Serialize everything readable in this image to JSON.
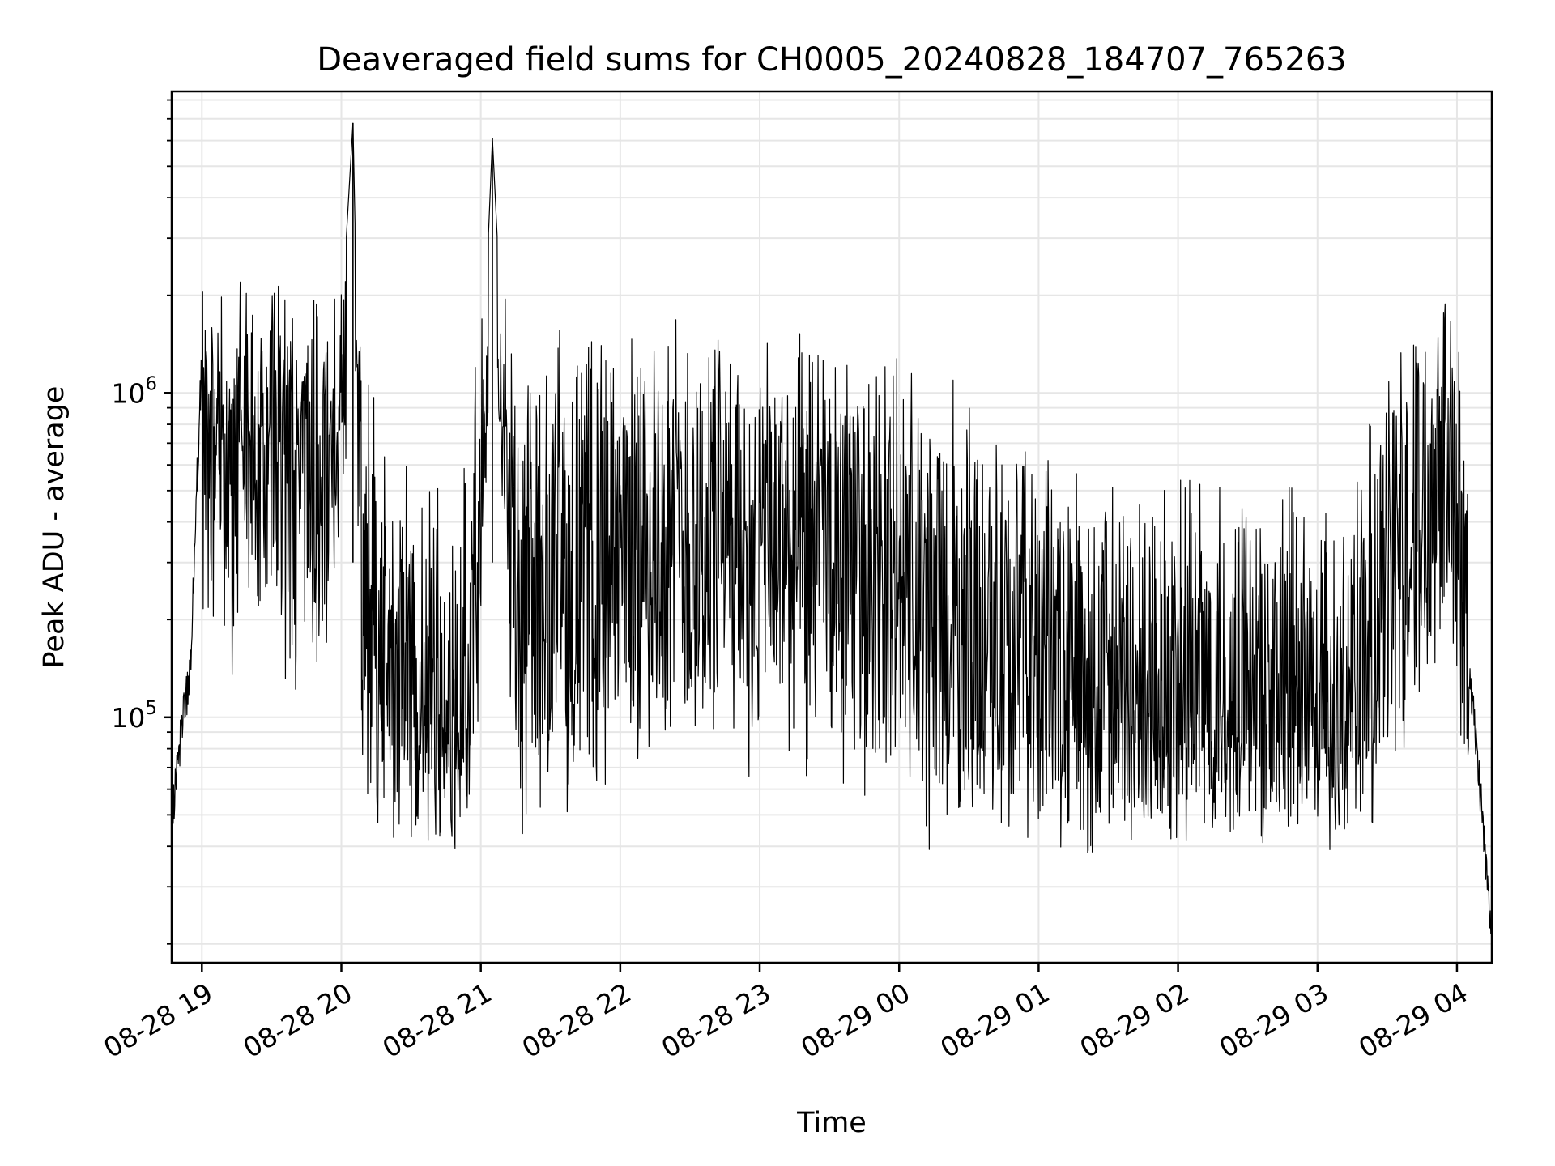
{
  "chart_data": {
    "type": "line",
    "title": "Deaveraged field sums for CH0005_20240828_184707_765263",
    "xlabel": "Time",
    "ylabel": "Peak ADU - average",
    "y_scale": "log",
    "ylim": [
      17500,
      8500000
    ],
    "xlim": [
      "2024-08-28 18:47",
      "2024-08-29 04:15"
    ],
    "x_tick_labels": [
      "08-28 19",
      "08-28 20",
      "08-28 21",
      "08-28 22",
      "08-28 23",
      "08-29 00",
      "08-29 01",
      "08-29 02",
      "08-29 03",
      "08-29 04"
    ],
    "x_ticks": [
      "2024-08-28 19:00",
      "2024-08-28 20:00",
      "2024-08-28 21:00",
      "2024-08-28 22:00",
      "2024-08-28 23:00",
      "2024-08-29 00:00",
      "2024-08-29 01:00",
      "2024-08-29 02:00",
      "2024-08-29 03:00",
      "2024-08-29 04:00"
    ],
    "y_ticks": [
      {
        "value": 100000,
        "base": "10",
        "exp": "5"
      },
      {
        "value": 1000000,
        "base": "10",
        "exp": "6"
      }
    ],
    "grid": true,
    "line_color": "#000000",
    "grid_color": "#e6e6e6",
    "series": [
      {
        "x": [
          "2024-08-28 18:47",
          "2024-08-28 18:49",
          "2024-08-28 18:52",
          "2024-08-28 18:55",
          "2024-08-28 18:58",
          "2024-08-28 19:00",
          "2024-08-28 19:02",
          "2024-08-28 19:05",
          "2024-08-28 19:08",
          "2024-08-28 19:12",
          "2024-08-28 19:16",
          "2024-08-28 19:20",
          "2024-08-28 19:25",
          "2024-08-28 19:30",
          "2024-08-28 19:40",
          "2024-08-28 19:50",
          "2024-08-28 19:55",
          "2024-08-28 20:05",
          "2024-08-28 20:09",
          "2024-08-28 20:15",
          "2024-08-28 20:25",
          "2024-08-28 20:40",
          "2024-08-28 20:55",
          "2024-08-28 21:05",
          "2024-08-28 21:15",
          "2024-08-28 21:20",
          "2024-08-28 21:30",
          "2024-08-28 21:45",
          "2024-08-28 22:00",
          "2024-08-28 22:20",
          "2024-08-28 22:40",
          "2024-08-28 23:00",
          "2024-08-28 23:20",
          "2024-08-28 23:40",
          "2024-08-29 00:00",
          "2024-08-29 00:20",
          "2024-08-29 00:40",
          "2024-08-29 01:00",
          "2024-08-29 01:20",
          "2024-08-29 01:40",
          "2024-08-29 02:00",
          "2024-08-29 02:20",
          "2024-08-29 02:40",
          "2024-08-29 03:00",
          "2024-08-29 03:15",
          "2024-08-29 03:25",
          "2024-08-29 03:35",
          "2024-08-29 03:45",
          "2024-08-29 03:55",
          "2024-08-29 04:00",
          "2024-08-29 04:05",
          "2024-08-29 04:10",
          "2024-08-29 04:15"
        ],
        "y": [
          45000,
          70000,
          100000,
          140000,
          550000,
          1300000,
          900000,
          700000,
          500000,
          380000,
          600000,
          900000,
          850000,
          750000,
          600000,
          500000,
          400000,
          6800000,
          250000,
          180000,
          120000,
          100000,
          110000,
          6100000,
          200000,
          250000,
          280000,
          300000,
          320000,
          350000,
          360000,
          340000,
          320000,
          300000,
          260000,
          200000,
          170000,
          140000,
          110000,
          100000,
          110000,
          120000,
          100000,
          90000,
          110000,
          170000,
          300000,
          500000,
          900000,
          650000,
          150000,
          60000,
          20000
        ]
      }
    ]
  }
}
